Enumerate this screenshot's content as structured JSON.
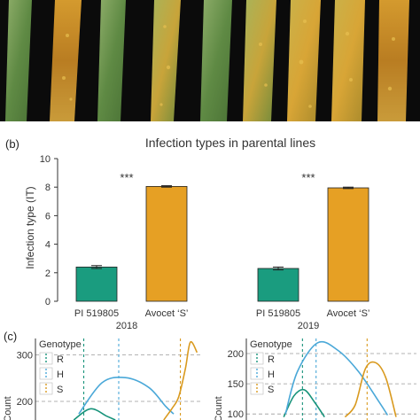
{
  "panel_b": {
    "label": "(b)",
    "title": "Infection types in parental lines",
    "ylabel": "Infection type (IT)",
    "colors": {
      "resistant": "#1a9c7f",
      "susceptible": "#e6a024"
    }
  },
  "panel_c": {
    "label": "(c)",
    "legend_title": "Genotype",
    "legend_items": [
      "R",
      "H",
      "S"
    ],
    "ylabel": "Count",
    "colors": {
      "R": "#17937a",
      "H": "#4aa8d8",
      "S": "#d99a1f"
    }
  },
  "chart_data": [
    {
      "type": "bar",
      "title": "Infection types in parental lines",
      "ylabel": "Infection type (IT)",
      "ylim": [
        0,
        10
      ],
      "yticks": [
        0,
        2,
        4,
        6,
        8,
        10
      ],
      "grid": false,
      "groups": [
        {
          "name": "2018",
          "significance": "***",
          "bars": [
            {
              "category": "PI 519805",
              "value": 2.4,
              "error": 0.1
            },
            {
              "category": "Avocet ‘S’",
              "value": 8.05,
              "error": 0.05
            }
          ]
        },
        {
          "name": "2019",
          "significance": "***",
          "bars": [
            {
              "category": "PI 519805",
              "value": 2.3,
              "error": 0.1
            },
            {
              "category": "Avocet ‘S’",
              "value": 7.95,
              "error": 0.05
            }
          ]
        }
      ]
    },
    {
      "type": "line",
      "ylabel": "Count",
      "yticks": [
        200,
        300
      ],
      "ylim": [
        160,
        335
      ],
      "xlim": [
        0,
        10
      ],
      "legend": {
        "title": "Genotype",
        "position": "top-left"
      },
      "series": [
        {
          "name": "R",
          "x": [
            2.3,
            3.3,
            4.3,
            4.8
          ],
          "y": [
            160,
            184,
            168,
            160
          ]
        },
        {
          "name": "H",
          "x": [
            2.6,
            4.0,
            5.4,
            6.8,
            7.8,
            8.3
          ],
          "y": [
            173,
            240,
            251,
            230,
            190,
            173
          ]
        },
        {
          "name": "S",
          "x": [
            7.7,
            8.2,
            8.6,
            9.0,
            9.3,
            9.7
          ],
          "y": [
            160,
            185,
            210,
            270,
            327,
            305
          ]
        }
      ],
      "vlines": {
        "R": 2.9,
        "H": 5.0,
        "S": 8.7
      }
    },
    {
      "type": "line",
      "ylabel": "Count",
      "yticks": [
        100,
        150,
        200
      ],
      "ylim": [
        90,
        225
      ],
      "xlim": [
        0,
        10
      ],
      "series": [
        {
          "name": "R",
          "x": [
            2.2,
            2.8,
            3.4,
            4.0,
            4.6
          ],
          "y": [
            95,
            130,
            140,
            120,
            95
          ]
        },
        {
          "name": "H",
          "x": [
            2.3,
            3.0,
            4.2,
            5.4,
            6.6,
            7.8,
            8.3
          ],
          "y": [
            100,
            170,
            218,
            205,
            170,
            120,
            98
          ]
        },
        {
          "name": "S",
          "x": [
            5.8,
            6.4,
            7.0,
            7.6,
            8.2,
            8.8
          ],
          "y": [
            95,
            115,
            175,
            185,
            160,
            95
          ]
        }
      ],
      "vlines": {
        "R": 3.3,
        "H": 4.1,
        "S": 7.1
      }
    }
  ]
}
